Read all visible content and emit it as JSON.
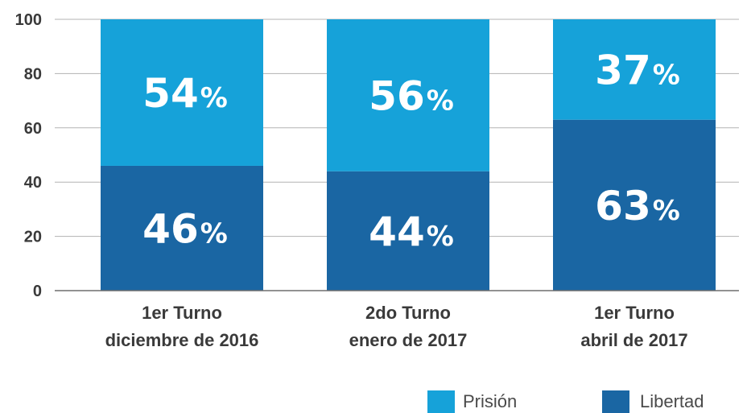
{
  "chart_data": {
    "type": "bar",
    "stacked": true,
    "categories": [
      [
        "1er Turno",
        "diciembre de 2016"
      ],
      [
        "2do Turno",
        "enero de 2017"
      ],
      [
        "1er Turno",
        "abril de 2017"
      ]
    ],
    "series": [
      {
        "name": "Libertad",
        "values": [
          46,
          44,
          63
        ],
        "color": "#1a66a3"
      },
      {
        "name": "Prisión",
        "values": [
          54,
          56,
          37
        ],
        "color": "#16a2d9"
      }
    ],
    "value_suffix": "%",
    "ylim": [
      0,
      100
    ],
    "yticks": [
      0,
      20,
      40,
      60,
      80,
      100
    ],
    "ytick_labels": [
      "0",
      "20",
      "40",
      "60",
      "80",
      "100"
    ],
    "grid": true,
    "legend_position": "bottom-right",
    "legend": [
      {
        "label": "Prisión",
        "color": "#16a2d9"
      },
      {
        "label": "Libertad",
        "color": "#1a66a3"
      }
    ],
    "title": "",
    "xlabel": "",
    "ylabel": ""
  }
}
